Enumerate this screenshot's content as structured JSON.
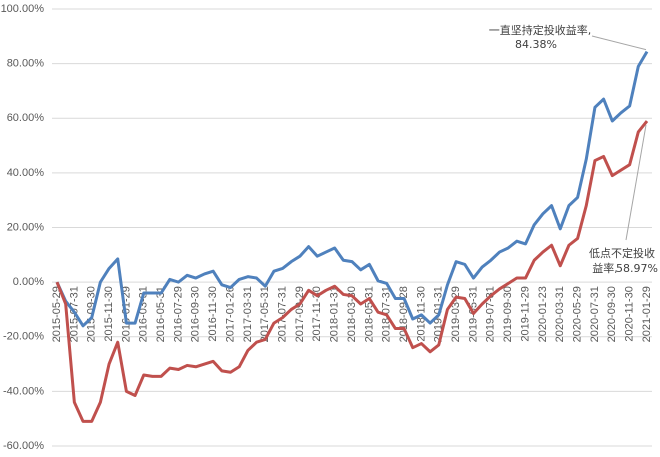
{
  "chart_data": {
    "type": "line",
    "categories": [
      "2015-05-29",
      null,
      "2015-07-31",
      null,
      "2015-09-30",
      null,
      "2015-11-30",
      null,
      "2016-01-29",
      null,
      "2016-03-31",
      null,
      "2016-05-31",
      null,
      "2016-07-29",
      null,
      "2016-09-30",
      null,
      "2016-11-30",
      null,
      "2017-01-26",
      null,
      "2017-03-31",
      null,
      "2017-05-31",
      null,
      "2017-07-31",
      null,
      "2017-09-29",
      null,
      "2017-11-30",
      null,
      "2018-01-31",
      null,
      "2018-03-30",
      null,
      "2018-05-31",
      null,
      "2018-07-31",
      null,
      "2018-09-28",
      null,
      "2018-11-30",
      null,
      "2019-01-31",
      null,
      "2019-03-29",
      null,
      "2019-05-31",
      null,
      "2019-07-31",
      null,
      "2019-09-30",
      null,
      "2019-11-29",
      null,
      "2020-01-23",
      null,
      "2020-03-31",
      null,
      "2020-05-29",
      null,
      "2020-07-31",
      null,
      "2020-09-30",
      null,
      "2020-11-30",
      null,
      "2021-01-29"
    ],
    "series": [
      {
        "name": "一直坚持定投收益率,",
        "color": "#4f81bd",
        "values": [
          0,
          -7,
          -11,
          -16,
          -13,
          0,
          5,
          8.5,
          -15,
          -15,
          -4,
          -4,
          -4,
          1,
          0,
          2.5,
          1.5,
          3,
          4,
          -1,
          -2,
          1,
          2,
          1.5,
          -1.5,
          4,
          5,
          7.5,
          9.5,
          13,
          9.5,
          11,
          12.5,
          8,
          7.5,
          4.5,
          6.5,
          0.5,
          -0.5,
          -6,
          -6,
          -13.5,
          -12,
          -15,
          -12,
          -1,
          7.5,
          6.5,
          1.5,
          5.5,
          8,
          11,
          12.5,
          15,
          14,
          21,
          25,
          28,
          19.5,
          28,
          31,
          45,
          64,
          67,
          59,
          62,
          64.5,
          79,
          84.38
        ],
        "value_labels": [
          null,
          null,
          null,
          null,
          null,
          null,
          null,
          null,
          null,
          null,
          null,
          null,
          null,
          null,
          null,
          null,
          null,
          null,
          null,
          null,
          null,
          null,
          null,
          null,
          null,
          null,
          null,
          null,
          null,
          null,
          null,
          null,
          null,
          null,
          null,
          null,
          null,
          null,
          null,
          null,
          null,
          null,
          null,
          null,
          null,
          null,
          null,
          null,
          null,
          null,
          null,
          null,
          null,
          null,
          null,
          null,
          null,
          null,
          null,
          null,
          null,
          null,
          null,
          null,
          null,
          null,
          null,
          null,
          "84.38%"
        ]
      },
      {
        "name": "低点不定投收益率,",
        "color": "#c0504d",
        "values": [
          0,
          -8,
          -44,
          -51,
          -51,
          -44,
          -30,
          -22,
          -40,
          -41.5,
          -34,
          -34.5,
          -34.5,
          -31.5,
          -32,
          -30.5,
          -31,
          -30,
          -29,
          -32.5,
          -33,
          -31,
          -25,
          -22,
          -21,
          -15,
          -13,
          -10,
          -8,
          -3,
          -5,
          -3,
          -1.5,
          -4.5,
          -5,
          -8,
          -6,
          -11,
          -12,
          -17,
          -17,
          -24,
          -22.5,
          -25.5,
          -23,
          -10,
          -5.5,
          -6,
          -11.5,
          -8,
          -5,
          -2.5,
          -0.5,
          1.5,
          1.5,
          8,
          11,
          13.5,
          6,
          13.5,
          16,
          28,
          44.5,
          46,
          39,
          41,
          43,
          55,
          58.97
        ],
        "value_labels": [
          null,
          null,
          null,
          null,
          null,
          null,
          null,
          null,
          null,
          null,
          null,
          null,
          null,
          null,
          null,
          null,
          null,
          null,
          null,
          null,
          null,
          null,
          null,
          null,
          null,
          null,
          null,
          null,
          null,
          null,
          null,
          null,
          null,
          null,
          null,
          null,
          null,
          null,
          null,
          null,
          null,
          null,
          null,
          null,
          null,
          null,
          null,
          null,
          null,
          null,
          null,
          null,
          null,
          null,
          null,
          null,
          null,
          null,
          null,
          null,
          null,
          null,
          null,
          null,
          null,
          null,
          null,
          null,
          "58.97%"
        ]
      }
    ],
    "ylim": [
      -60,
      100
    ],
    "yticks": [
      {
        "value": -60,
        "label": "-60.00%"
      },
      {
        "value": -40,
        "label": "-40.00%"
      },
      {
        "value": -20,
        "label": "-20.00%"
      },
      {
        "value": 0,
        "label": "0.00%"
      },
      {
        "value": 20,
        "label": "20.00%"
      },
      {
        "value": 40,
        "label": "40.00%"
      },
      {
        "value": 60,
        "label": "60.00%"
      },
      {
        "value": 80,
        "label": "80.00%"
      },
      {
        "value": 100,
        "label": "100.00%"
      }
    ],
    "grid": true
  }
}
